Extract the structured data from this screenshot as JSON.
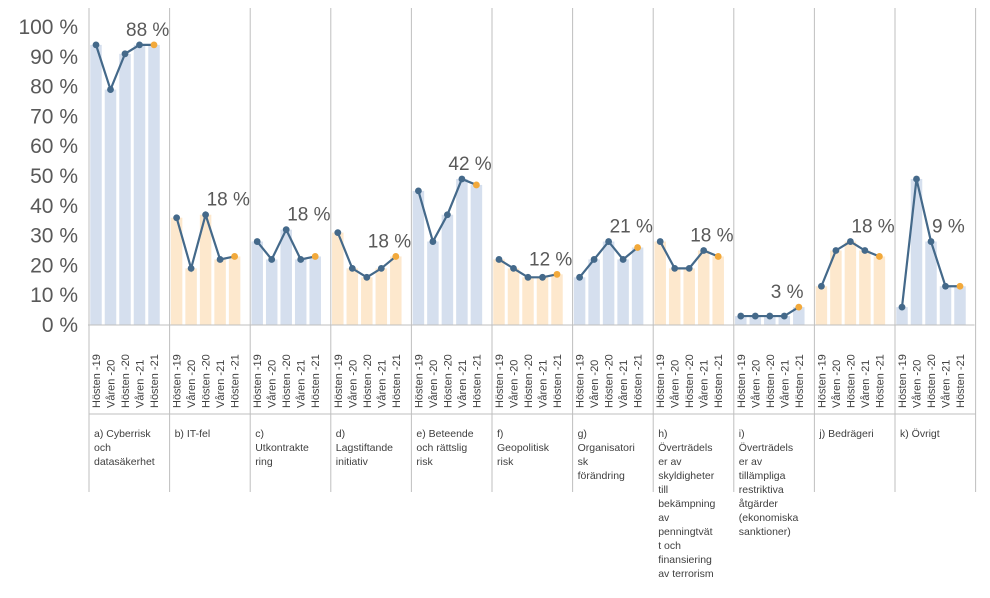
{
  "chart_data": {
    "type": "line",
    "title": "",
    "xlabel": "",
    "ylabel": "",
    "ylim": [
      0,
      100
    ],
    "y_ticks": [
      "0 %",
      "10 %",
      "20 %",
      "30 %",
      "40 %",
      "50 %",
      "60 %",
      "70 %",
      "80 %",
      "90 %",
      "100 %"
    ],
    "grid": false,
    "legend": "none",
    "periods": [
      "Hösten -19",
      "Våren -20",
      "Hösten -20",
      "Våren -21",
      "Hösten -21"
    ],
    "colors": {
      "line": "#44698a",
      "marker": "#44698a",
      "last_marker": "#f2a93b",
      "bar_blue": "#d5dfee",
      "bar_orange": "#fde8cd",
      "axis": "#bfbfbf"
    },
    "groups": [
      {
        "label": "a) Cyberrisk och datasäkerhet",
        "label_lines": [
          "a) Cyberrisk",
          "och",
          "datasäkerhet"
        ],
        "values": [
          94,
          79,
          91,
          94,
          94
        ],
        "bar_color": "blue",
        "data_label": "88 %"
      },
      {
        "label": "b) IT-fel",
        "label_lines": [
          "b) IT-fel"
        ],
        "values": [
          36,
          19,
          37,
          22,
          23
        ],
        "bar_color": "orange",
        "data_label": "18 %"
      },
      {
        "label": "c) Utkontraktering",
        "label_lines": [
          "c)",
          "Utkontrakte",
          "ring"
        ],
        "values": [
          28,
          22,
          32,
          22,
          23
        ],
        "bar_color": "blue",
        "data_label": "18 %"
      },
      {
        "label": "d) Lagstiftande initiativ",
        "label_lines": [
          "d)",
          "Lagstiftande",
          "initiativ"
        ],
        "values": [
          31,
          19,
          16,
          19,
          23
        ],
        "bar_color": "orange",
        "data_label": "18 %"
      },
      {
        "label": "e) Beteende och rättslig risk",
        "label_lines": [
          "e) Beteende",
          "och rättslig",
          "risk"
        ],
        "values": [
          45,
          28,
          37,
          49,
          47
        ],
        "bar_color": "blue",
        "data_label": "42 %"
      },
      {
        "label": "f) Geopolitisk risk",
        "label_lines": [
          "f)",
          "Geopolitisk",
          "risk"
        ],
        "values": [
          22,
          19,
          16,
          16,
          17
        ],
        "bar_color": "orange",
        "data_label": "12 %"
      },
      {
        "label": "g) Organisatorisk förändring",
        "label_lines": [
          "g)",
          "Organisatori",
          "sk",
          "förändring"
        ],
        "values": [
          16,
          22,
          28,
          22,
          26
        ],
        "bar_color": "blue",
        "data_label": "21 %"
      },
      {
        "label": "h) Överträdelser av skyldigheter till bekämpning av penningtvätt och finansiering av terrorism",
        "label_lines": [
          "h)",
          "Överträdels",
          "er av",
          "skyldigheter",
          "till",
          "bekämpning",
          "av",
          "penningtvät",
          "t och",
          "finansiering",
          "av terrorism"
        ],
        "values": [
          28,
          19,
          19,
          25,
          23
        ],
        "bar_color": "orange",
        "data_label": "18 %"
      },
      {
        "label": "i) Överträdelser av tillämpliga restriktiva åtgärder (ekonomiska sanktioner)",
        "label_lines": [
          "i)",
          "Överträdels",
          "er av",
          "tillämpliga",
          "restriktiva",
          "åtgärder",
          "(ekonomiska",
          "sanktioner)"
        ],
        "values": [
          3,
          3,
          3,
          3,
          6
        ],
        "bar_color": "blue",
        "data_label": "3 %"
      },
      {
        "label": "j) Bedrägeri",
        "label_lines": [
          "j) Bedrägeri"
        ],
        "values": [
          13,
          25,
          28,
          25,
          23
        ],
        "bar_color": "orange",
        "data_label": "18 %"
      },
      {
        "label": "k) Övrigt",
        "label_lines": [
          "k) Övrigt"
        ],
        "values": [
          6,
          49,
          28,
          13,
          13
        ],
        "bar_color": "blue",
        "data_label": "9 %"
      }
    ]
  }
}
